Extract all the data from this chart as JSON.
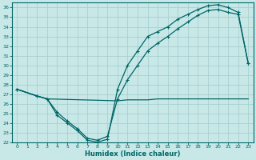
{
  "xlabel": "Humidex (Indice chaleur)",
  "bg_color": "#c8e8e8",
  "grid_color": "#a8d0d0",
  "line_color": "#006666",
  "xlim": [
    -0.5,
    23.5
  ],
  "ylim": [
    22,
    36.5
  ],
  "xticks": [
    0,
    1,
    2,
    3,
    4,
    5,
    6,
    7,
    8,
    9,
    10,
    11,
    12,
    13,
    14,
    15,
    16,
    17,
    18,
    19,
    20,
    21,
    22,
    23
  ],
  "yticks": [
    22,
    23,
    24,
    25,
    26,
    27,
    28,
    29,
    30,
    31,
    32,
    33,
    34,
    35,
    36
  ],
  "line1_x": [
    0,
    2,
    3,
    10,
    11,
    12,
    13,
    14,
    15,
    16,
    17,
    18,
    19,
    20,
    21,
    22,
    23
  ],
  "line1_y": [
    27.5,
    26.8,
    26.5,
    26.3,
    26.4,
    26.4,
    26.4,
    26.5,
    26.5,
    26.5,
    26.5,
    26.5,
    26.5,
    26.5,
    26.5,
    26.5,
    26.5
  ],
  "line2_x": [
    0,
    2,
    3,
    4,
    5,
    6,
    7,
    8,
    9,
    10,
    11,
    12,
    13,
    14,
    15,
    16,
    17,
    18,
    19,
    20,
    21,
    22,
    23
  ],
  "line2_y": [
    27.5,
    26.8,
    26.5,
    25.1,
    24.2,
    23.4,
    22.4,
    22.2,
    22.6,
    26.5,
    28.5,
    30.0,
    31.5,
    32.3,
    33.0,
    33.8,
    34.5,
    35.2,
    35.7,
    35.8,
    35.5,
    35.3,
    30.2
  ],
  "line3_x": [
    0,
    2,
    3,
    4,
    5,
    6,
    7,
    8,
    9,
    10,
    11,
    12,
    13,
    14,
    15,
    16,
    17,
    18,
    19,
    20,
    21,
    22,
    23
  ],
  "line3_y": [
    27.5,
    26.8,
    26.5,
    24.8,
    24.0,
    23.2,
    22.2,
    22.0,
    22.3,
    27.5,
    30.0,
    31.5,
    33.0,
    33.5,
    34.0,
    34.8,
    35.3,
    35.8,
    36.2,
    36.3,
    36.0,
    35.5,
    30.2
  ]
}
